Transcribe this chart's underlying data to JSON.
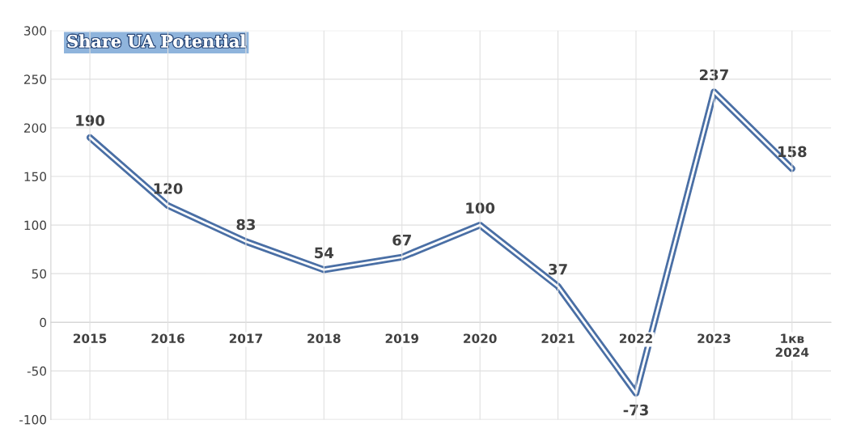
{
  "chart_data": {
    "type": "line",
    "title": "Share UA Potential",
    "categories": [
      "2015",
      "2016",
      "2017",
      "2018",
      "2019",
      "2020",
      "2021",
      "2022",
      "2023",
      "1кв\n2024"
    ],
    "series": [
      {
        "color": "#4a6fa5",
        "values": [
          190,
          120,
          83,
          54,
          67,
          100,
          37,
          -73,
          237,
          158
        ]
      }
    ],
    "ylim": [
      -100,
      300
    ],
    "yticks": [
      -100,
      -50,
      0,
      50,
      100,
      150,
      200,
      250,
      300
    ],
    "grid": true,
    "data_labels": true,
    "marker": "none",
    "line_style": "solid"
  }
}
